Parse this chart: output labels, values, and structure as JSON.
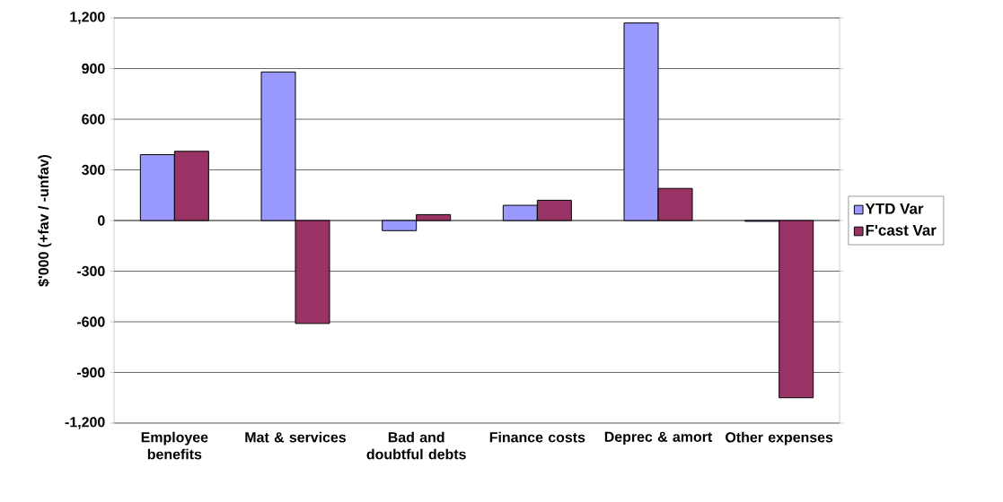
{
  "chart_data": {
    "type": "bar",
    "ylabel": "$'000 (+fav / -unfav)",
    "categories": [
      "Employee benefits",
      "Mat & services",
      "Bad and doubtful debts",
      "Finance costs",
      "Deprec & amort",
      "Other expenses"
    ],
    "series": [
      {
        "name": "YTD Var",
        "color": "#9999ff",
        "values": [
          390,
          880,
          -60,
          90,
          1170,
          -5
        ]
      },
      {
        "name": "F'cast Var",
        "color": "#993366",
        "values": [
          410,
          -610,
          35,
          120,
          190,
          -1050
        ]
      }
    ],
    "ylim": [
      -1200,
      1200
    ],
    "yticks": [
      {
        "value": -1200,
        "label": "-1,200"
      },
      -900,
      -600,
      -300,
      0,
      300,
      600,
      900,
      {
        "value": 1200,
        "label": "1,200"
      }
    ],
    "grid": "y",
    "legend": "right"
  }
}
